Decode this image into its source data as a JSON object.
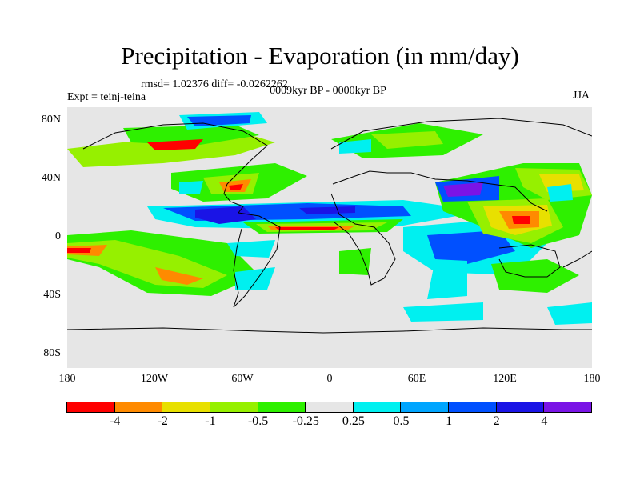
{
  "title": "Precipitation - Evaporation (in mm/day)",
  "stats": "rmsd= 1.02376 diff= -0.0262262",
  "expt": "Expt = teinj-teina",
  "period": "0009kyr BP - 0000kyr BP",
  "season": "JJA",
  "y_axis": {
    "ticks": [
      "80N",
      "40N",
      "0",
      "40S",
      "80S"
    ]
  },
  "x_axis": {
    "ticks": [
      "180",
      "120W",
      "60W",
      "0",
      "60E",
      "120E",
      "180"
    ]
  },
  "colorbar": {
    "colors": [
      "#ff0000",
      "#ff8a00",
      "#e8e000",
      "#96f000",
      "#2ef000",
      "#e6e6e6",
      "#00f0f0",
      "#00a5ff",
      "#0050ff",
      "#1a14e6",
      "#7a14e6"
    ],
    "labels": [
      "-4",
      "-2",
      "-1",
      "-0.5",
      "-0.25",
      "0.25",
      "0.5",
      "1",
      "2",
      "4"
    ]
  },
  "colors": {
    "background": "#e6e6e6",
    "land": "#000000"
  }
}
